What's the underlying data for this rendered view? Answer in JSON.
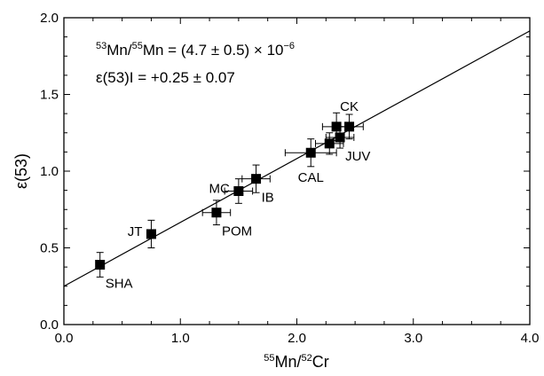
{
  "chart_data": {
    "type": "scatter",
    "xlabel": "⁵⁵Mn/⁵²Cr",
    "ylabel": "ε(53)",
    "xlim": [
      0.0,
      4.0
    ],
    "ylim": [
      0.0,
      2.0
    ],
    "x_ticks": [
      0.0,
      1.0,
      2.0,
      3.0,
      4.0
    ],
    "x_tick_labels": [
      "0.0",
      "1.0",
      "2.0",
      "3.0",
      "4.0"
    ],
    "y_ticks": [
      0.0,
      0.5,
      1.0,
      1.5,
      2.0
    ],
    "y_tick_labels": [
      "0.0",
      "0.5",
      "1.0",
      "1.5",
      "2.0"
    ],
    "grid": false,
    "annotations": [
      "⁵³Mn/⁵⁵Mn = (4.7 ± 0.5) × 10⁻⁶",
      "ε(53)I = +0.25 ± 0.07"
    ],
    "fit_line": {
      "intercept": 0.25,
      "slope": 0.416
    },
    "points": [
      {
        "label": "SHA",
        "x": 0.31,
        "y": 0.39,
        "xerr": 0.0,
        "yerr": 0.08,
        "label_pos": "below-right"
      },
      {
        "label": "JT",
        "x": 0.75,
        "y": 0.59,
        "xerr": 0.0,
        "yerr": 0.09,
        "label_pos": "left"
      },
      {
        "label": "POM",
        "x": 1.31,
        "y": 0.73,
        "xerr": 0.12,
        "yerr": 0.08,
        "label_pos": "below-right"
      },
      {
        "label": "MC",
        "x": 1.5,
        "y": 0.87,
        "xerr": 0.12,
        "yerr": 0.08,
        "label_pos": "left"
      },
      {
        "label": "IB",
        "x": 1.65,
        "y": 0.95,
        "xerr": 0.12,
        "yerr": 0.09,
        "label_pos": "below-right"
      },
      {
        "label": "CAL",
        "x": 2.12,
        "y": 1.12,
        "xerr": 0.22,
        "yerr": 0.09,
        "label_pos": "below"
      },
      {
        "label": "",
        "x": 2.28,
        "y": 1.18,
        "xerr": 0.12,
        "yerr": 0.07,
        "label_pos": ""
      },
      {
        "label": "JUV",
        "x": 2.37,
        "y": 1.22,
        "xerr": 0.12,
        "yerr": 0.07,
        "label_pos": "below-right"
      },
      {
        "label": "",
        "x": 2.34,
        "y": 1.29,
        "xerr": 0.12,
        "yerr": 0.09,
        "label_pos": ""
      },
      {
        "label": "CK",
        "x": 2.45,
        "y": 1.29,
        "xerr": 0.12,
        "yerr": 0.08,
        "label_pos": "above"
      }
    ]
  }
}
